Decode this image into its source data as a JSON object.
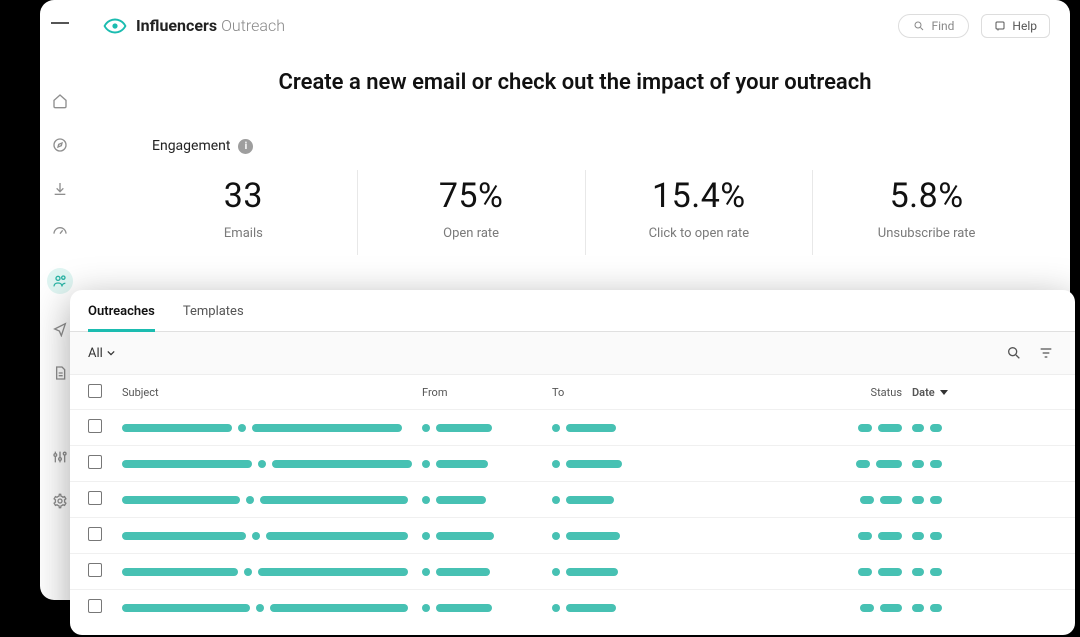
{
  "colors": {
    "accent": "#1bbcb0",
    "placeholder": "#47c1b3",
    "text": "#111111",
    "muted": "#7a7a7a",
    "border": "#e8e8e8",
    "bg": "#ffffff"
  },
  "header": {
    "brand_main": "Influencers",
    "brand_sub": "Outreach",
    "find_label": "Find",
    "help_label": "Help"
  },
  "sidebar": {
    "items": [
      {
        "name": "menu",
        "icon": "burger"
      },
      {
        "name": "home",
        "icon": "home"
      },
      {
        "name": "compass",
        "icon": "compass"
      },
      {
        "name": "download",
        "icon": "download"
      },
      {
        "name": "speed",
        "icon": "gauge"
      },
      {
        "name": "people",
        "icon": "people",
        "active": true
      },
      {
        "name": "share",
        "icon": "share"
      },
      {
        "name": "doc",
        "icon": "doc"
      },
      {
        "name": "sliders",
        "icon": "sliders"
      },
      {
        "name": "settings",
        "icon": "gear"
      }
    ]
  },
  "hero": {
    "headline": "Create a new email or check out the impact of your outreach"
  },
  "engagement": {
    "label": "Engagement",
    "stats": [
      {
        "value": "33",
        "label": "Emails"
      },
      {
        "value": "75%",
        "label": "Open rate"
      },
      {
        "value": "15.4%",
        "label": "Click to open rate"
      },
      {
        "value": "5.8%",
        "label": "Unsubscribe rate"
      }
    ]
  },
  "tabs": {
    "items": [
      {
        "label": "Outreaches",
        "active": true
      },
      {
        "label": "Templates",
        "active": false
      }
    ]
  },
  "filter": {
    "all_label": "All"
  },
  "table": {
    "columns": {
      "subject": "Subject",
      "from": "From",
      "to": "To",
      "status": "Status",
      "date": "Date"
    },
    "sort": {
      "column": "date",
      "dir": "desc"
    },
    "placeholder_color": "#47c1b3",
    "rows": [
      {
        "subject_bars": [
          110,
          10,
          150
        ],
        "from_bars": [
          8,
          56
        ],
        "to_bars": [
          8,
          50
        ],
        "status_bars": [
          14,
          24
        ],
        "date_bars": [
          12,
          12
        ]
      },
      {
        "subject_bars": [
          130,
          10,
          140
        ],
        "from_bars": [
          8,
          52
        ],
        "to_bars": [
          8,
          56
        ],
        "status_bars": [
          14,
          26
        ],
        "date_bars": [
          12,
          12
        ]
      },
      {
        "subject_bars": [
          118,
          10,
          148
        ],
        "from_bars": [
          8,
          50
        ],
        "to_bars": [
          8,
          48
        ],
        "status_bars": [
          14,
          22
        ],
        "date_bars": [
          12,
          12
        ]
      },
      {
        "subject_bars": [
          124,
          10,
          142
        ],
        "from_bars": [
          8,
          58
        ],
        "to_bars": [
          8,
          54
        ],
        "status_bars": [
          14,
          24
        ],
        "date_bars": [
          12,
          12
        ]
      },
      {
        "subject_bars": [
          116,
          10,
          150
        ],
        "from_bars": [
          8,
          54
        ],
        "to_bars": [
          8,
          52
        ],
        "status_bars": [
          14,
          24
        ],
        "date_bars": [
          12,
          12
        ]
      },
      {
        "subject_bars": [
          128,
          10,
          138
        ],
        "from_bars": [
          8,
          56
        ],
        "to_bars": [
          8,
          50
        ],
        "status_bars": [
          14,
          22
        ],
        "date_bars": [
          12,
          12
        ]
      }
    ]
  }
}
